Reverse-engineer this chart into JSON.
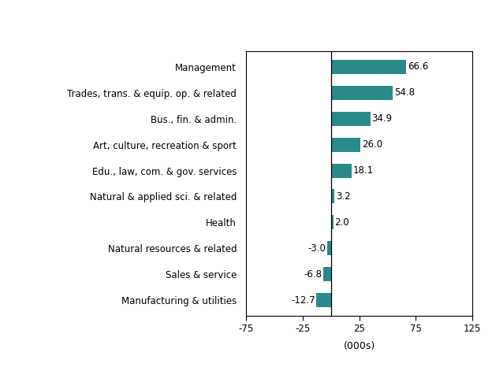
{
  "categories": [
    "Manufacturing & utilities",
    "Sales & service",
    "Natural resources & related",
    "Health",
    "Natural & applied sci. & related",
    "Edu., law, com. & gov. services",
    "Art, culture, recreation & sport",
    "Bus., fin. & admin.",
    "Trades, trans. & equip. op. & related",
    "Management"
  ],
  "values": [
    -12.7,
    -6.8,
    -3.0,
    2.0,
    3.2,
    18.1,
    26.0,
    34.9,
    54.8,
    66.6
  ],
  "bar_color": "#2a8a8a",
  "xlabel": "(000s)",
  "xlim": [
    -75,
    125
  ],
  "xticks": [
    -75,
    -25,
    25,
    75,
    125
  ],
  "background_color": "#ffffff",
  "label_fontsize": 8.5,
  "tick_fontsize": 8.5,
  "xlabel_fontsize": 9,
  "bar_height": 0.55
}
